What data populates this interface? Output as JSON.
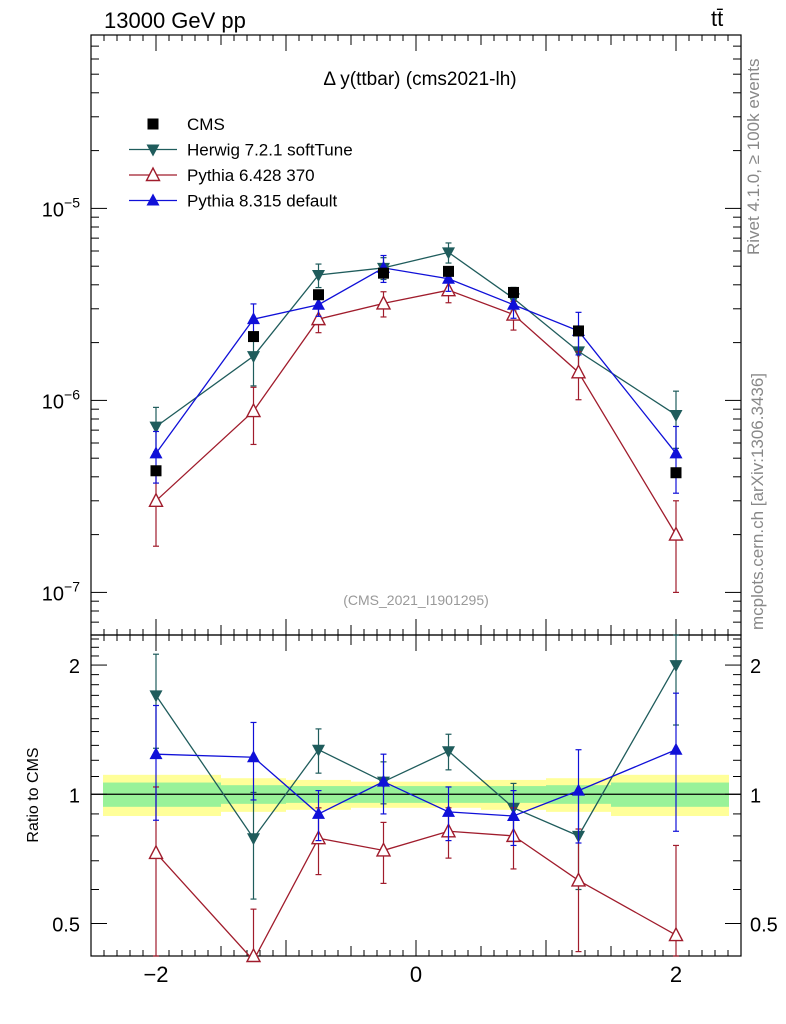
{
  "header": {
    "left": "13000 GeV pp",
    "right": "tt̄"
  },
  "side": {
    "rivet": "Rivet 4.1.0, ≥ 100k events",
    "source": "mcplots.cern.ch [arXiv:1306.3436]"
  },
  "chart_data": {
    "type": "scatter",
    "title": "Δ y(ttbar) (cms2021-lh)",
    "analysis_tag": "(CMS_2021_I1901295)",
    "xlim": [
      -2.5,
      2.5
    ],
    "ylim_main": [
      6e-08,
      8e-05
    ],
    "ylim_ratio": [
      0.42,
      2.35
    ],
    "x_ticks": [
      -2,
      0,
      2
    ],
    "x_tick_labels": [
      "−2",
      "0",
      "2"
    ],
    "y_ticks_main": [
      1e-07,
      1e-06,
      1e-05
    ],
    "y_tick_labels_main": [
      "10−7",
      "10−6",
      "10−5"
    ],
    "y_ticks_ratio": [
      0.5,
      1,
      2
    ],
    "y_tick_labels_ratio": [
      "0.5",
      "1",
      "2"
    ],
    "ratio_ylabel": "Ratio to CMS",
    "x": [
      -2,
      -1.25,
      -0.75,
      -0.25,
      0.25,
      0.75,
      1.25,
      2
    ],
    "band_edges": [
      -2.5,
      -1.5,
      -1,
      -0.5,
      0,
      0.5,
      1,
      1.5,
      2.5
    ],
    "band_green": [
      0.065,
      0.05,
      0.045,
      0.045,
      0.045,
      0.045,
      0.05,
      0.065
    ],
    "band_yellow": [
      0.11,
      0.09,
      0.08,
      0.07,
      0.07,
      0.08,
      0.09,
      0.11
    ],
    "series": [
      {
        "name": "CMS",
        "color": "#000000",
        "marker": "square",
        "values": [
          4.3e-07,
          2.15e-06,
          3.55e-06,
          4.6e-06,
          4.7e-06,
          3.65e-06,
          2.3e-06,
          4.2e-07
        ]
      },
      {
        "name": "Herwig 7.2.1 softTune",
        "color": "#1f5c5c",
        "marker": "triangle-down",
        "values": [
          7.3e-07,
          1.7e-06,
          4.5e-06,
          4.9e-06,
          5.9e-06,
          3.4e-06,
          1.8e-06,
          8.4e-07
        ],
        "err": [
          0.26,
          0.3,
          0.14,
          0.13,
          0.12,
          0.14,
          0.24,
          0.33
        ],
        "ratio": [
          1.7,
          0.79,
          1.27,
          1.07,
          1.26,
          0.93,
          0.8,
          2.0
        ],
        "ratio_err": [
          0.42,
          0.22,
          0.15,
          0.12,
          0.12,
          0.13,
          0.2,
          0.55
        ]
      },
      {
        "name": "Pythia 6.428 370",
        "color": "#a01c2c",
        "marker": "triangle-open",
        "values": [
          3e-07,
          8.8e-07,
          2.65e-06,
          3.2e-06,
          3.75e-06,
          2.8e-06,
          1.4e-06,
          2e-07
        ],
        "err": [
          0.42,
          0.33,
          0.15,
          0.15,
          0.14,
          0.17,
          0.28,
          0.5
        ],
        "ratio": [
          0.73,
          0.41,
          0.79,
          0.74,
          0.82,
          0.8,
          0.63,
          0.47
        ],
        "ratio_err": [
          0.31,
          0.13,
          0.14,
          0.12,
          0.11,
          0.13,
          0.2,
          0.29
        ]
      },
      {
        "name": "Pythia 8.315 default",
        "color": "#1010d8",
        "marker": "triangle-up",
        "values": [
          5.3e-07,
          2.65e-06,
          3.15e-06,
          4.9e-06,
          4.3e-06,
          3.15e-06,
          2.3e-06,
          5.3e-07
        ],
        "err": [
          0.3,
          0.2,
          0.13,
          0.16,
          0.14,
          0.15,
          0.25,
          0.38
        ],
        "ratio": [
          1.24,
          1.22,
          0.9,
          1.07,
          0.91,
          0.89,
          1.02,
          1.27
        ],
        "ratio_err": [
          0.37,
          0.25,
          0.12,
          0.17,
          0.13,
          0.13,
          0.25,
          0.45
        ]
      }
    ]
  }
}
